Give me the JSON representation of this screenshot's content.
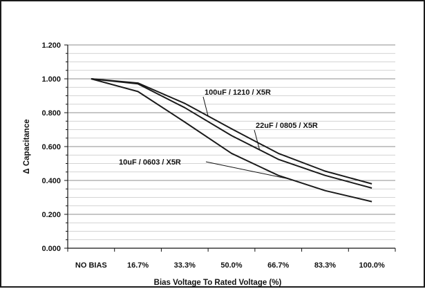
{
  "chart_data": {
    "type": "line",
    "title": "",
    "xlabel": "Bias Voltage To Rated Voltage (%)",
    "ylabel": "Δ Capacitance",
    "categories": [
      "NO BIAS",
      "16.7%",
      "33.3%",
      "50.0%",
      "66.7%",
      "83.3%",
      "100.0%"
    ],
    "ylim": [
      0,
      1.2
    ],
    "yticks": [
      "0.000",
      "0.200",
      "0.400",
      "0.600",
      "0.800",
      "1.000",
      "1.200"
    ],
    "grid": true,
    "legend": "none",
    "series": [
      {
        "name": "100uF / 1210 /  X5R",
        "values": [
          1.0,
          0.975,
          0.855,
          0.705,
          0.56,
          0.455,
          0.38
        ],
        "color": "#1a1a1a"
      },
      {
        "name": "22uF / 0805 /  X5R",
        "values": [
          1.0,
          0.97,
          0.83,
          0.665,
          0.525,
          0.43,
          0.355
        ],
        "color": "#1a1a1a"
      },
      {
        "name": "10uF / 0603 /  X5R",
        "values": [
          1.0,
          0.925,
          0.745,
          0.56,
          0.43,
          0.34,
          0.275
        ],
        "color": "#1a1a1a"
      }
    ]
  }
}
